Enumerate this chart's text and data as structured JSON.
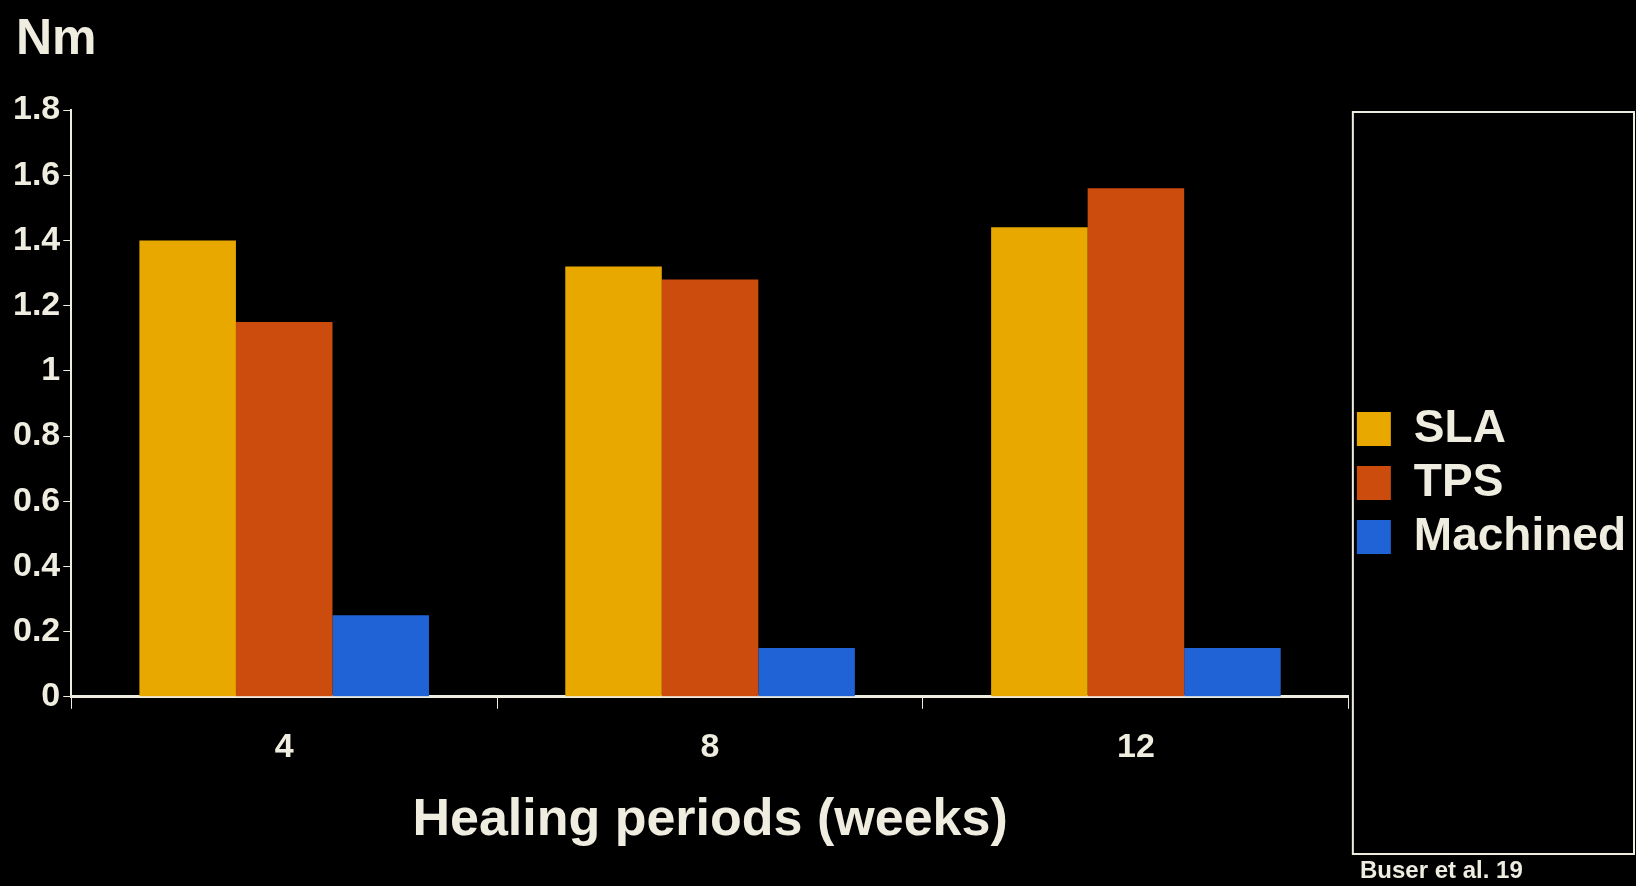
{
  "chart_data": {
    "type": "bar",
    "ylabel": "Nm",
    "xlabel": "Healing periods (weeks)",
    "categories": [
      "4",
      "8",
      "12"
    ],
    "series": [
      {
        "name": "SLA",
        "color": "#e9a800",
        "values": [
          1.4,
          1.32,
          1.44
        ]
      },
      {
        "name": "TPS",
        "color": "#cc4c0e",
        "values": [
          1.15,
          1.28,
          1.56
        ]
      },
      {
        "name": "Machined",
        "color": "#1f63d6",
        "values": [
          0.25,
          0.15,
          0.15
        ]
      }
    ],
    "ylim": [
      0,
      1.8
    ],
    "yticks": [
      0,
      0.2,
      0.4,
      0.6,
      0.8,
      1,
      1.2,
      1.4,
      1.6,
      1.8
    ],
    "grid": false,
    "legend": "right",
    "annotations": [
      "Buser et al. 19"
    ]
  }
}
